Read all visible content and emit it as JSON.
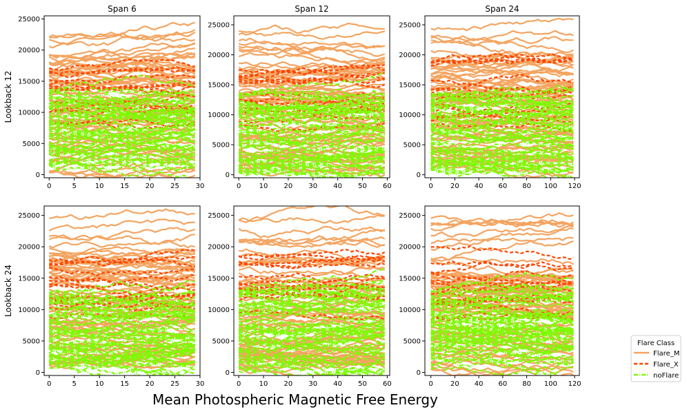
{
  "figure": {
    "xlabel": "Mean Photospheric Magnetic Free Energy",
    "legend": {
      "title": "Flare Class",
      "placement": "right-bottom",
      "entries": [
        {
          "label": "Flare_M",
          "color": "#f4a460",
          "style": "solid"
        },
        {
          "label": "Flare_X",
          "color": "#ff4500",
          "style": "dashed"
        },
        {
          "label": "noFlare",
          "color": "#7cfc00",
          "style": "dashdot"
        }
      ]
    }
  },
  "chart_data": [
    {
      "type": "line",
      "title": "Span 6",
      "ylabel": "Lookback 12",
      "xlim": [
        -1,
        30
      ],
      "ylim": [
        -500,
        25500
      ],
      "xticks": [
        0,
        5,
        10,
        15,
        20,
        25,
        30
      ],
      "yticks": [
        0,
        5000,
        10000,
        15000,
        20000,
        25000
      ],
      "xtick_labels": [
        "0",
        "5",
        "10",
        "15",
        "20",
        "25",
        "30"
      ],
      "ytick_labels": [
        "0",
        "5000",
        "10000",
        "15000",
        "20000",
        "25000"
      ],
      "series_summary": {
        "Flare_M": {
          "y_range": [
            500,
            24000
          ]
        },
        "Flare_X": {
          "y_range": [
            7500,
            18300
          ]
        },
        "noFlare": {
          "y_range": [
            0,
            14000
          ]
        }
      }
    },
    {
      "type": "line",
      "title": "Span 12",
      "ylabel": "",
      "xlim": [
        -2,
        61
      ],
      "ylim": [
        -500,
        26500
      ],
      "xticks": [
        0,
        10,
        20,
        30,
        40,
        50,
        60
      ],
      "yticks": [
        0,
        5000,
        10000,
        15000,
        20000,
        25000
      ],
      "xtick_labels": [
        "0",
        "10",
        "20",
        "30",
        "40",
        "50",
        "60"
      ],
      "ytick_labels": [
        "0",
        "5000",
        "10000",
        "15000",
        "20000",
        "25000"
      ],
      "series_summary": {
        "Flare_M": {
          "y_range": [
            500,
            25500
          ]
        },
        "Flare_X": {
          "y_range": [
            8000,
            18500
          ]
        },
        "noFlare": {
          "y_range": [
            0,
            14000
          ]
        }
      }
    },
    {
      "type": "line",
      "title": "Span 24",
      "ylabel": "",
      "xlim": [
        -5,
        124
      ],
      "ylim": [
        -500,
        26500
      ],
      "xticks": [
        0,
        20,
        40,
        60,
        80,
        100,
        120
      ],
      "yticks": [
        0,
        5000,
        10000,
        15000,
        20000,
        25000
      ],
      "xtick_labels": [
        "0",
        "20",
        "40",
        "60",
        "80",
        "100",
        "120"
      ],
      "ytick_labels": [
        "0",
        "5000",
        "10000",
        "15000",
        "20000",
        "25000"
      ],
      "series_summary": {
        "Flare_M": {
          "y_range": [
            500,
            25500
          ]
        },
        "Flare_X": {
          "y_range": [
            8000,
            19500
          ]
        },
        "noFlare": {
          "y_range": [
            0,
            14000
          ]
        }
      }
    },
    {
      "type": "line",
      "title": "",
      "ylabel": "Lookback 24",
      "xlim": [
        -1,
        30
      ],
      "ylim": [
        -500,
        26500
      ],
      "xticks": [
        0,
        5,
        10,
        15,
        20,
        25,
        30
      ],
      "yticks": [
        0,
        5000,
        10000,
        15000,
        20000,
        25000
      ],
      "xtick_labels": [
        "0",
        "5",
        "10",
        "15",
        "20",
        "25",
        "30"
      ],
      "ytick_labels": [
        "0",
        "5000",
        "10000",
        "15000",
        "20000",
        "25000"
      ],
      "series_summary": {
        "Flare_M": {
          "y_range": [
            500,
            25300
          ]
        },
        "Flare_X": {
          "y_range": [
            8000,
            18300
          ]
        },
        "noFlare": {
          "y_range": [
            0,
            14000
          ]
        }
      }
    },
    {
      "type": "line",
      "title": "",
      "ylabel": "",
      "xlim": [
        -2,
        61
      ],
      "ylim": [
        -500,
        26500
      ],
      "xticks": [
        0,
        10,
        20,
        30,
        40,
        50,
        60
      ],
      "yticks": [
        0,
        5000,
        10000,
        15000,
        20000,
        25000
      ],
      "xtick_labels": [
        "0",
        "10",
        "20",
        "30",
        "40",
        "50",
        "60"
      ],
      "ytick_labels": [
        "0",
        "5000",
        "10000",
        "15000",
        "20000",
        "25000"
      ],
      "series_summary": {
        "Flare_M": {
          "y_range": [
            500,
            25200
          ]
        },
        "Flare_X": {
          "y_range": [
            8000,
            19500
          ]
        },
        "noFlare": {
          "y_range": [
            0,
            14000
          ]
        }
      }
    },
    {
      "type": "line",
      "title": "",
      "ylabel": "",
      "xlim": [
        -5,
        124
      ],
      "ylim": [
        -500,
        26500
      ],
      "xticks": [
        0,
        20,
        40,
        60,
        80,
        100,
        120
      ],
      "yticks": [
        0,
        5000,
        10000,
        15000,
        20000,
        25000
      ],
      "xtick_labels": [
        "0",
        "20",
        "40",
        "60",
        "80",
        "100",
        "120"
      ],
      "ytick_labels": [
        "0",
        "5000",
        "10000",
        "15000",
        "20000",
        "25000"
      ],
      "series_summary": {
        "Flare_M": {
          "y_range": [
            500,
            25300
          ]
        },
        "Flare_X": {
          "y_range": [
            8000,
            20500
          ]
        },
        "noFlare": {
          "y_range": [
            0,
            14000
          ]
        }
      }
    }
  ]
}
